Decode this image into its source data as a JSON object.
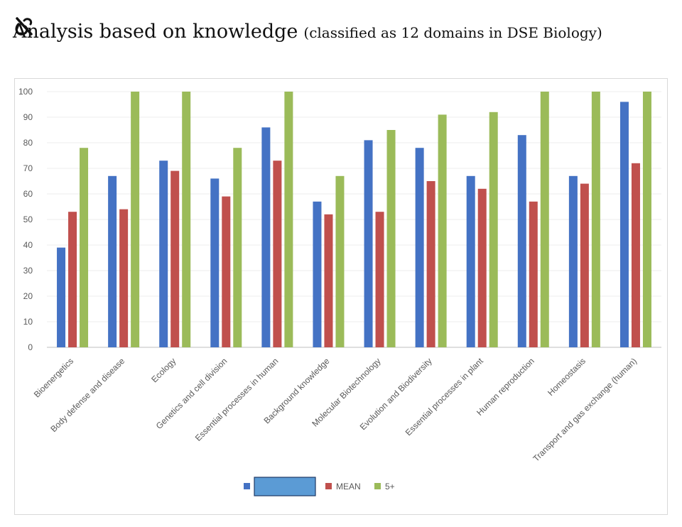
{
  "header": {
    "title": "Analysis based on knowledge",
    "subtitle": "(classified as 12 domains in DSE Biology)",
    "logo_icon": "link-swirl-icon"
  },
  "chart_data": {
    "type": "bar",
    "categories": [
      "Bioenergetics",
      "Body defense and disease",
      "Ecology",
      "Genetics and cell division",
      "Essential processes in human",
      "Background knowledge",
      "Molecular Biotechnology",
      "Evolution and Biodiversity",
      "Essential processes in plant",
      "Human reproduction",
      "Homeostasis",
      "Transport and gas exchange (human)"
    ],
    "series": [
      {
        "name": "",
        "color": "#4472C4",
        "values": [
          39,
          67,
          73,
          66,
          86,
          57,
          81,
          78,
          67,
          83,
          67,
          96
        ]
      },
      {
        "name": "MEAN",
        "color": "#C0504D",
        "values": [
          53,
          54,
          69,
          59,
          73,
          52,
          53,
          65,
          62,
          57,
          64,
          72
        ]
      },
      {
        "name": "5+",
        "color": "#9BBB59",
        "values": [
          78,
          100,
          100,
          78,
          100,
          67,
          85,
          91,
          92,
          100,
          100,
          100
        ]
      }
    ],
    "ylim": [
      0,
      100
    ],
    "yticks": [
      0,
      10,
      20,
      30,
      40,
      50,
      60,
      70,
      80,
      90,
      100
    ],
    "grid": true,
    "legend_position": "bottom"
  }
}
